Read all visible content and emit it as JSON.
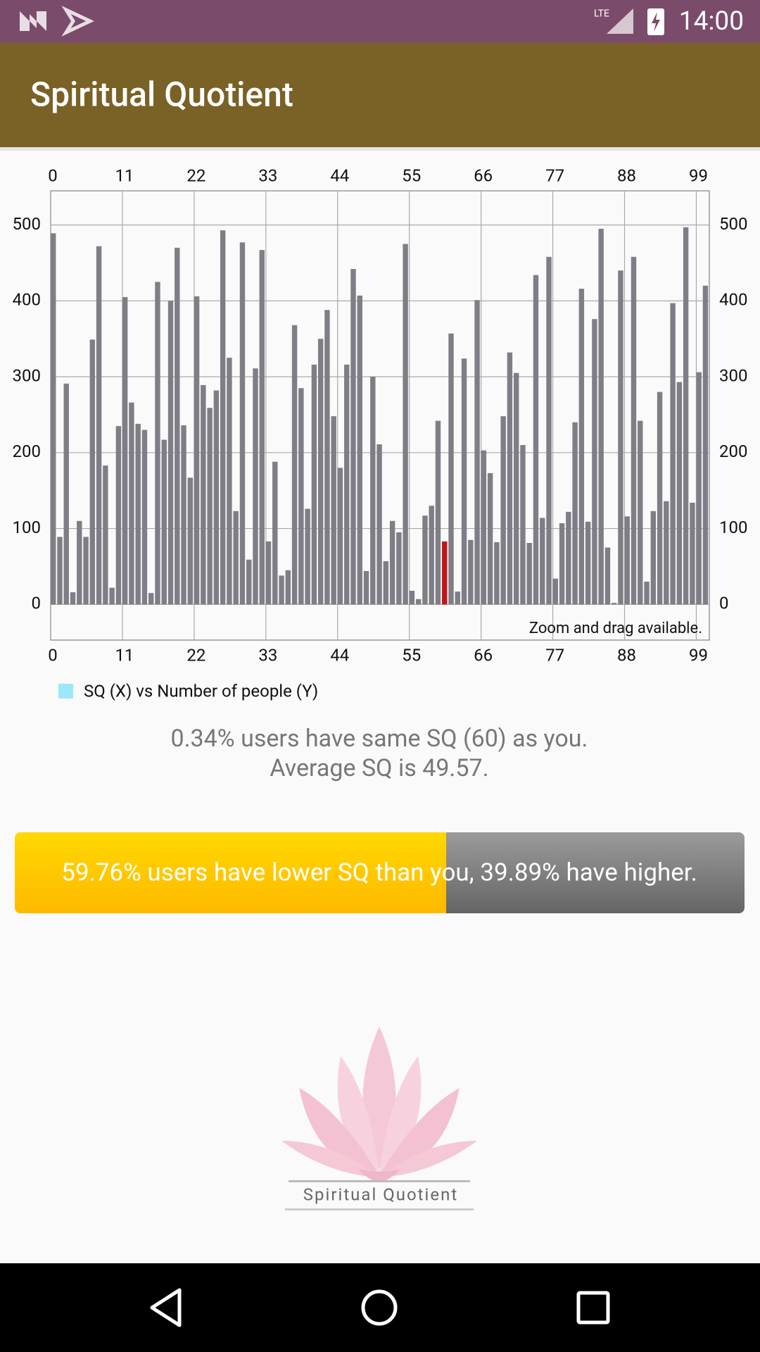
{
  "status_bar": {
    "time": "14:00",
    "network": "LTE"
  },
  "app_bar": {
    "title": "Spiritual Quotient"
  },
  "chart_data": {
    "type": "bar",
    "x": [
      0,
      1,
      2,
      3,
      4,
      5,
      6,
      7,
      8,
      9,
      10,
      11,
      12,
      13,
      14,
      15,
      16,
      17,
      18,
      19,
      20,
      21,
      22,
      23,
      24,
      25,
      26,
      27,
      28,
      29,
      30,
      31,
      32,
      33,
      34,
      35,
      36,
      37,
      38,
      39,
      40,
      41,
      42,
      43,
      44,
      45,
      46,
      47,
      48,
      49,
      50,
      51,
      52,
      53,
      54,
      55,
      56,
      57,
      58,
      59,
      60,
      61,
      62,
      63,
      64,
      65,
      66,
      67,
      68,
      69,
      70,
      71,
      72,
      73,
      74,
      75,
      76,
      77,
      78,
      79,
      80,
      81,
      82,
      83,
      84,
      85,
      86,
      87,
      88,
      89,
      90,
      91,
      92,
      93,
      94,
      95,
      96,
      97,
      98,
      99,
      100
    ],
    "series": [
      {
        "name": "SQ (X) vs Number of people (Y)",
        "color": "#7f7e86",
        "legend_color": "#9de8f8",
        "highlight": {
          "index": 60,
          "color": "#c0161b"
        },
        "values": [
          489,
          89,
          291,
          16,
          110,
          89,
          349,
          472,
          183,
          22,
          235,
          405,
          266,
          238,
          230,
          15,
          425,
          217,
          400,
          470,
          236,
          167,
          406,
          289,
          259,
          282,
          493,
          325,
          123,
          477,
          59,
          311,
          467,
          83,
          188,
          38,
          45,
          368,
          285,
          126,
          316,
          350,
          388,
          248,
          180,
          316,
          442,
          407,
          44,
          300,
          211,
          57,
          110,
          95,
          475,
          18,
          7,
          117,
          130,
          242,
          83,
          357,
          17,
          324,
          85,
          401,
          203,
          173,
          82,
          248,
          332,
          305,
          210,
          81,
          434,
          114,
          458,
          34,
          107,
          122,
          240,
          416,
          109,
          376,
          495,
          75,
          2,
          440,
          116,
          458,
          242,
          30,
          123,
          280,
          136,
          397,
          293,
          497,
          134,
          306,
          420
        ]
      }
    ],
    "xlim": [
      0,
      101
    ],
    "xticks": [
      0,
      11,
      22,
      33,
      44,
      55,
      66,
      77,
      88,
      99
    ],
    "ylim": [
      -47,
      545
    ],
    "yticks": [
      0,
      100,
      200,
      300,
      400,
      500
    ],
    "grid": true,
    "annotation": "Zoom and drag available."
  },
  "stats": {
    "same": "0.34% users have same SQ (60) as you.",
    "average": "Average SQ is 49.57."
  },
  "comparison": "59.76% users have lower SQ than you, 39.89% have higher.",
  "logo": {
    "caption": "Spiritual Quotient"
  }
}
